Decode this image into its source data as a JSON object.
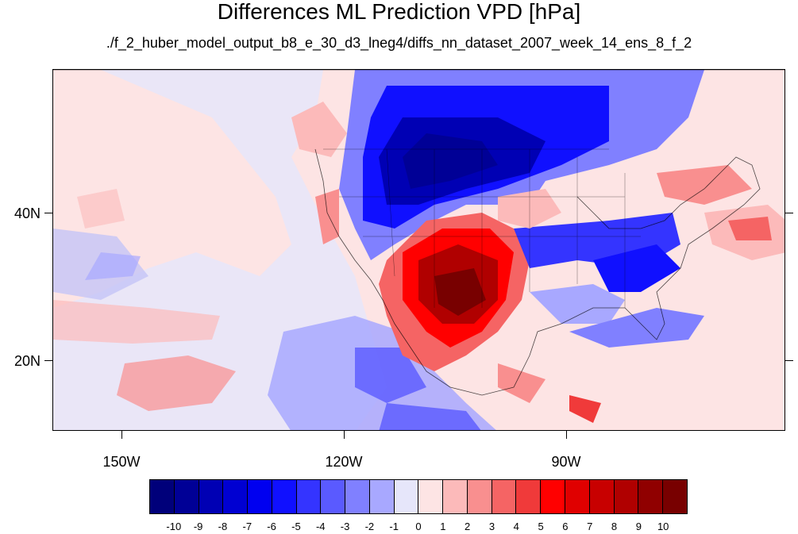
{
  "title": "Differences ML Prediction VPD [hPa]",
  "subtitle": "./f_2_huber_model_output_b8_e_30_d3_lneg4/diffs_nn_dataset_2007_week_14_ens_8_f_2",
  "axes": {
    "lat_labels": [
      "40N",
      "20N"
    ],
    "lon_labels": [
      "150W",
      "120W",
      "90W"
    ]
  },
  "colorbar": {
    "colors": [
      "#00007a",
      "#000096",
      "#0000b4",
      "#0000d2",
      "#0000f0",
      "#1010ff",
      "#3434ff",
      "#5a5aff",
      "#8080ff",
      "#a8a8ff",
      "#e6e6fa",
      "#fde4e4",
      "#fcbaba",
      "#f98f8f",
      "#f56464",
      "#f03a3a",
      "#ff0000",
      "#e00000",
      "#c80000",
      "#b00000",
      "#900000",
      "#780000"
    ],
    "labels": [
      "-10",
      "-9",
      "-8",
      "-7",
      "-6",
      "-5",
      "-4",
      "-3",
      "-2",
      "-1",
      "0",
      "1",
      "2",
      "3",
      "4",
      "5",
      "6",
      "7",
      "8",
      "9",
      "10"
    ]
  }
}
